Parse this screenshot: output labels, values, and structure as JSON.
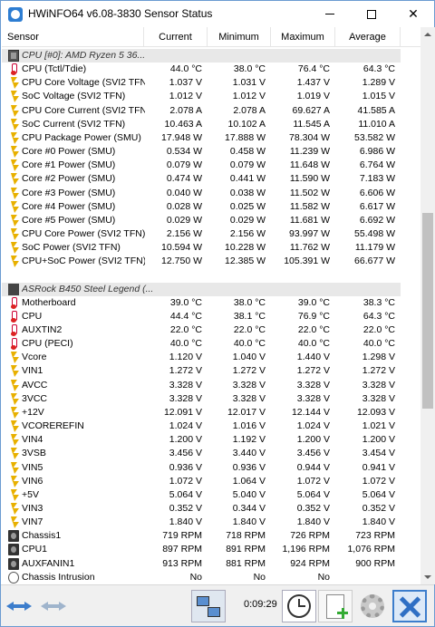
{
  "window": {
    "title": "HWiNFO64 v6.08-3830 Sensor Status",
    "minimize_glyph": "",
    "maximize_glyph": "",
    "close_glyph": "✕"
  },
  "columns": [
    "Sensor",
    "Current",
    "Minimum",
    "Maximum",
    "Average"
  ],
  "groups": [
    {
      "name": "CPU [#0]: AMD Ryzen 5 36...",
      "icon": "chip-icon",
      "rows": [
        {
          "name": "CPU (Tctl/Tdie)",
          "icon": "thermometer-icon",
          "current": "44.0 °C",
          "min": "38.0 °C",
          "max": "76.4 °C",
          "avg": "64.3 °C"
        },
        {
          "name": "CPU Core Voltage (SVI2 TFN)",
          "icon": "bolt-icon",
          "current": "1.037 V",
          "min": "1.031 V",
          "max": "1.437 V",
          "avg": "1.289 V"
        },
        {
          "name": "SoC Voltage (SVI2 TFN)",
          "icon": "bolt-icon",
          "current": "1.012 V",
          "min": "1.012 V",
          "max": "1.019 V",
          "avg": "1.015 V"
        },
        {
          "name": "CPU Core Current (SVI2 TFN)",
          "icon": "bolt-icon",
          "current": "2.078 A",
          "min": "2.078 A",
          "max": "69.627 A",
          "avg": "41.585 A"
        },
        {
          "name": "SoC Current (SVI2 TFN)",
          "icon": "bolt-icon",
          "current": "10.463 A",
          "min": "10.102 A",
          "max": "11.545 A",
          "avg": "11.010 A"
        },
        {
          "name": "CPU Package Power (SMU)",
          "icon": "bolt-icon",
          "current": "17.948 W",
          "min": "17.888 W",
          "max": "78.304 W",
          "avg": "53.582 W"
        },
        {
          "name": "Core #0 Power (SMU)",
          "icon": "bolt-icon",
          "current": "0.534 W",
          "min": "0.458 W",
          "max": "11.239 W",
          "avg": "6.986 W"
        },
        {
          "name": "Core #1 Power (SMU)",
          "icon": "bolt-icon",
          "current": "0.079 W",
          "min": "0.079 W",
          "max": "11.648 W",
          "avg": "6.764 W"
        },
        {
          "name": "Core #2 Power (SMU)",
          "icon": "bolt-icon",
          "current": "0.474 W",
          "min": "0.441 W",
          "max": "11.590 W",
          "avg": "7.183 W"
        },
        {
          "name": "Core #3 Power (SMU)",
          "icon": "bolt-icon",
          "current": "0.040 W",
          "min": "0.038 W",
          "max": "11.502 W",
          "avg": "6.606 W"
        },
        {
          "name": "Core #4 Power (SMU)",
          "icon": "bolt-icon",
          "current": "0.028 W",
          "min": "0.025 W",
          "max": "11.582 W",
          "avg": "6.617 W"
        },
        {
          "name": "Core #5 Power (SMU)",
          "icon": "bolt-icon",
          "current": "0.029 W",
          "min": "0.029 W",
          "max": "11.681 W",
          "avg": "6.692 W"
        },
        {
          "name": "CPU Core Power (SVI2 TFN)",
          "icon": "bolt-icon",
          "current": "2.156 W",
          "min": "2.156 W",
          "max": "93.997 W",
          "avg": "55.498 W"
        },
        {
          "name": "SoC Power (SVI2 TFN)",
          "icon": "bolt-icon",
          "current": "10.594 W",
          "min": "10.228 W",
          "max": "11.762 W",
          "avg": "11.179 W"
        },
        {
          "name": "CPU+SoC Power (SVI2 TFN)",
          "icon": "bolt-icon",
          "current": "12.750 W",
          "min": "12.385 W",
          "max": "105.391 W",
          "avg": "66.677 W"
        }
      ]
    },
    {
      "name": "ASRock B450 Steel Legend (...",
      "icon": "motherboard-icon",
      "rows": [
        {
          "name": "Motherboard",
          "icon": "thermometer-icon",
          "current": "39.0 °C",
          "min": "38.0 °C",
          "max": "39.0 °C",
          "avg": "38.3 °C"
        },
        {
          "name": "CPU",
          "icon": "thermometer-icon",
          "current": "44.4 °C",
          "min": "38.1 °C",
          "max": "76.9 °C",
          "avg": "64.3 °C"
        },
        {
          "name": "AUXTIN2",
          "icon": "thermometer-icon",
          "current": "22.0 °C",
          "min": "22.0 °C",
          "max": "22.0 °C",
          "avg": "22.0 °C"
        },
        {
          "name": "CPU (PECI)",
          "icon": "thermometer-icon",
          "current": "40.0 °C",
          "min": "40.0 °C",
          "max": "40.0 °C",
          "avg": "40.0 °C"
        },
        {
          "name": "Vcore",
          "icon": "bolt-icon",
          "current": "1.120 V",
          "min": "1.040 V",
          "max": "1.440 V",
          "avg": "1.298 V"
        },
        {
          "name": "VIN1",
          "icon": "bolt-icon",
          "current": "1.272 V",
          "min": "1.272 V",
          "max": "1.272 V",
          "avg": "1.272 V"
        },
        {
          "name": "AVCC",
          "icon": "bolt-icon",
          "current": "3.328 V",
          "min": "3.328 V",
          "max": "3.328 V",
          "avg": "3.328 V"
        },
        {
          "name": "3VCC",
          "icon": "bolt-icon",
          "current": "3.328 V",
          "min": "3.328 V",
          "max": "3.328 V",
          "avg": "3.328 V"
        },
        {
          "name": "+12V",
          "icon": "bolt-icon",
          "current": "12.091 V",
          "min": "12.017 V",
          "max": "12.144 V",
          "avg": "12.093 V"
        },
        {
          "name": "VCOREREFIN",
          "icon": "bolt-icon",
          "current": "1.024 V",
          "min": "1.016 V",
          "max": "1.024 V",
          "avg": "1.021 V"
        },
        {
          "name": "VIN4",
          "icon": "bolt-icon",
          "current": "1.200 V",
          "min": "1.192 V",
          "max": "1.200 V",
          "avg": "1.200 V"
        },
        {
          "name": "3VSB",
          "icon": "bolt-icon",
          "current": "3.456 V",
          "min": "3.440 V",
          "max": "3.456 V",
          "avg": "3.454 V"
        },
        {
          "name": "VIN5",
          "icon": "bolt-icon",
          "current": "0.936 V",
          "min": "0.936 V",
          "max": "0.944 V",
          "avg": "0.941 V"
        },
        {
          "name": "VIN6",
          "icon": "bolt-icon",
          "current": "1.072 V",
          "min": "1.064 V",
          "max": "1.072 V",
          "avg": "1.072 V"
        },
        {
          "name": "+5V",
          "icon": "bolt-icon",
          "current": "5.064 V",
          "min": "5.040 V",
          "max": "5.064 V",
          "avg": "5.064 V"
        },
        {
          "name": "VIN3",
          "icon": "bolt-icon",
          "current": "0.352 V",
          "min": "0.344 V",
          "max": "0.352 V",
          "avg": "0.352 V"
        },
        {
          "name": "VIN7",
          "icon": "bolt-icon",
          "current": "1.840 V",
          "min": "1.840 V",
          "max": "1.840 V",
          "avg": "1.840 V"
        },
        {
          "name": "Chassis1",
          "icon": "fan-icon",
          "current": "719 RPM",
          "min": "718 RPM",
          "max": "726 RPM",
          "avg": "723 RPM"
        },
        {
          "name": "CPU1",
          "icon": "fan-icon",
          "current": "897 RPM",
          "min": "891 RPM",
          "max": "1,196 RPM",
          "avg": "1,076 RPM"
        },
        {
          "name": "AUXFANIN1",
          "icon": "fan-icon",
          "current": "913 RPM",
          "min": "881 RPM",
          "max": "924 RPM",
          "avg": "900 RPM"
        },
        {
          "name": "Chassis Intrusion",
          "icon": "shield-icon",
          "current": "No",
          "min": "No",
          "max": "No",
          "avg": ""
        }
      ]
    }
  ],
  "toolbar": {
    "elapsed_time": "0:09:29"
  }
}
